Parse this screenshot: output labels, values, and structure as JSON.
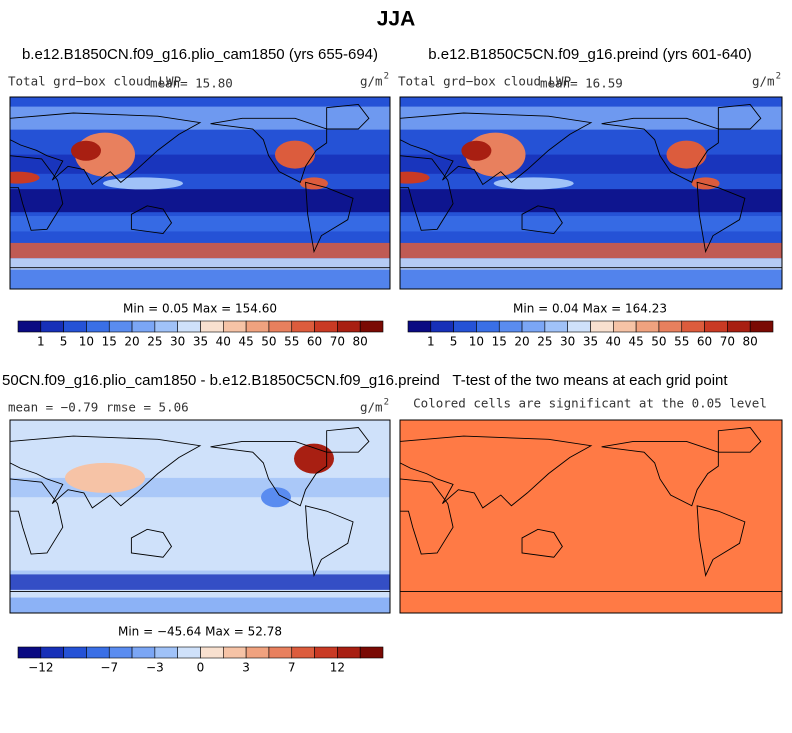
{
  "title": "JJA",
  "panels": [
    {
      "case": "b.e12.B1850CN.f09_g16.plio_cam1850 (yrs 655-694)",
      "variable": "Total grd−box cloud LWP",
      "mean": "mean=  15.80",
      "units": "g/m",
      "units_power": "2",
      "stats": "Min =   0.05 Max = 154.60",
      "field": "lwp"
    },
    {
      "case": "b.e12.B1850C5CN.f09_g16.preind (yrs 601-640)",
      "variable": "Total grd−box cloud LWP",
      "mean": "mean=  16.59",
      "units": "g/m",
      "units_power": "2",
      "stats": "Min =   0.04 Max = 164.23",
      "field": "lwp"
    },
    {
      "case": "50CN.f09_g16.plio_cam1850 - b.e12.B1850C5CN.f09_g16.preind",
      "variable": "mean =  −0.79    rmse =   5.06",
      "units": "g/m",
      "units_power": "2",
      "stats": "Min = −45.64 Max =  52.78",
      "field": "diff"
    },
    {
      "case": "T-test of the two means at each grid point",
      "variable": "Colored cells are significant at the 0.05 level",
      "field": "ttest"
    }
  ],
  "palette": [
    "#0a0a82",
    "#1730b8",
    "#2552d6",
    "#3a6fe6",
    "#5a8cf0",
    "#7ba6f5",
    "#a0c2f8",
    "#cfe1fa",
    "#f8e0cf",
    "#f6c3a6",
    "#f0a27f",
    "#e8805e",
    "#dc5c3d",
    "#c93a24",
    "#a81f12",
    "#7a0a04"
  ],
  "colorbars": [
    {
      "labels": [
        "1",
        "5",
        "10",
        "15",
        "20",
        "25",
        "30",
        "35",
        "40",
        "45",
        "50",
        "55",
        "60",
        "70",
        "80"
      ]
    },
    {
      "labels": [
        "1",
        "5",
        "10",
        "15",
        "20",
        "25",
        "30",
        "35",
        "40",
        "45",
        "50",
        "55",
        "60",
        "70",
        "80"
      ]
    },
    {
      "labels": [
        "−12",
        null,
        null,
        "−7",
        null,
        "−3",
        null,
        "0",
        null,
        "3",
        null,
        "7",
        null,
        "12",
        null
      ]
    }
  ]
}
